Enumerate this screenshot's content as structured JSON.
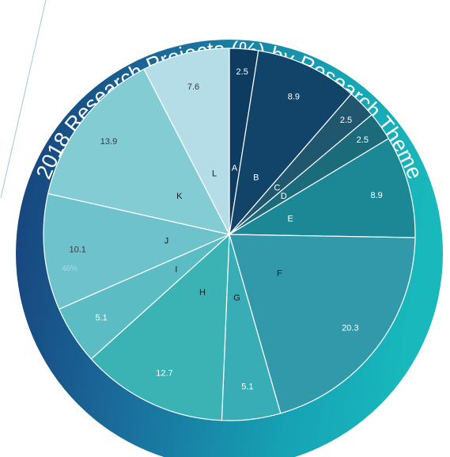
{
  "chart_data": {
    "type": "pie",
    "title": "2018 Research Projects (%) by Research Theme",
    "categories": [
      "A",
      "B",
      "C",
      "D",
      "E",
      "F",
      "G",
      "H",
      "I",
      "J",
      "K",
      "L"
    ],
    "values": [
      2.5,
      8.9,
      2.5,
      2.5,
      8.9,
      20.3,
      5.1,
      12.7,
      5.1,
      10.1,
      13.9,
      7.6
    ],
    "value_labels": [
      "2.5",
      "8.9",
      "2.5",
      "2.5",
      "8.9",
      "20.3",
      "5.1",
      "12.7",
      "5.1",
      "10.1",
      "13.9",
      "7.6"
    ],
    "annotation": "46%",
    "colors": [
      "#0d3c60",
      "#114468",
      "#21566f",
      "#1c6b7b",
      "#1c8895",
      "#3199aa",
      "#38adb6",
      "#3bb3b5",
      "#5cbcc4",
      "#6ec2cb",
      "#84ccd4",
      "#b4dde8"
    ],
    "ring_gradient": [
      "#163f78",
      "#1a6a9a",
      "#16a2b4",
      "#18b8bc"
    ],
    "legend": "none"
  }
}
